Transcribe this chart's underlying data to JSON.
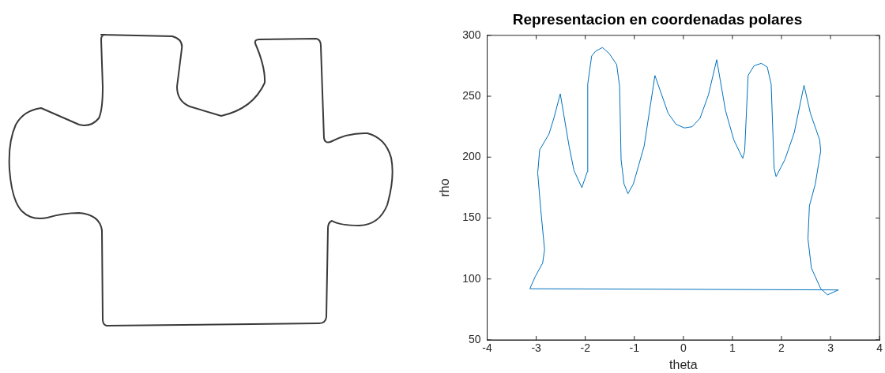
{
  "chart_data": {
    "type": "line",
    "title": "Representacion en coordenadas polares",
    "xlabel": "theta",
    "ylabel": "rho",
    "series": [
      {
        "color": "#0072bd",
        "x": [
          -3.13,
          -3.02,
          -2.87,
          -2.83,
          -2.91,
          -2.97,
          -2.93,
          -2.74,
          -2.64,
          -2.51,
          -2.33,
          -2.23,
          -2.07,
          -1.96,
          -1.95,
          -1.87,
          -1.79,
          -1.65,
          -1.51,
          -1.36,
          -1.3,
          -1.27,
          -1.21,
          -1.13,
          -1.02,
          -0.8,
          -0.58,
          -0.31,
          -0.15,
          0.02,
          0.18,
          0.34,
          0.51,
          0.68,
          0.86,
          1.03,
          1.21,
          1.25,
          1.32,
          1.44,
          1.59,
          1.71,
          1.79,
          1.85,
          1.89,
          2.07,
          2.26,
          2.46,
          2.59,
          2.78,
          2.8,
          2.69,
          2.57,
          2.54,
          2.61,
          2.8,
          2.94,
          3.16
        ],
        "values": [
          92,
          102,
          113,
          124,
          158,
          187,
          206,
          219,
          232,
          252,
          209,
          189,
          175,
          188,
          260,
          283,
          287,
          290,
          285,
          276,
          258,
          198,
          178,
          170,
          178,
          209,
          267,
          236,
          227,
          224,
          225,
          232,
          251,
          280,
          238,
          214,
          199,
          205,
          267,
          275,
          277,
          274,
          260,
          191,
          184,
          198,
          220,
          259,
          236,
          214,
          205,
          178,
          160,
          133,
          109,
          92,
          87,
          91
        ]
      },
      {
        "color": "#0072bd",
        "x": [
          3.16,
          -3.13
        ],
        "values": [
          91,
          92
        ]
      }
    ],
    "marker": "none",
    "line_style": "solid",
    "xlim": [
      -4,
      4
    ],
    "xticks": [
      -4,
      -3,
      -2,
      -1,
      0,
      1,
      2,
      3,
      4
    ],
    "ylim": [
      50,
      300
    ],
    "yticks": [
      50,
      100,
      150,
      200,
      250,
      300
    ]
  }
}
